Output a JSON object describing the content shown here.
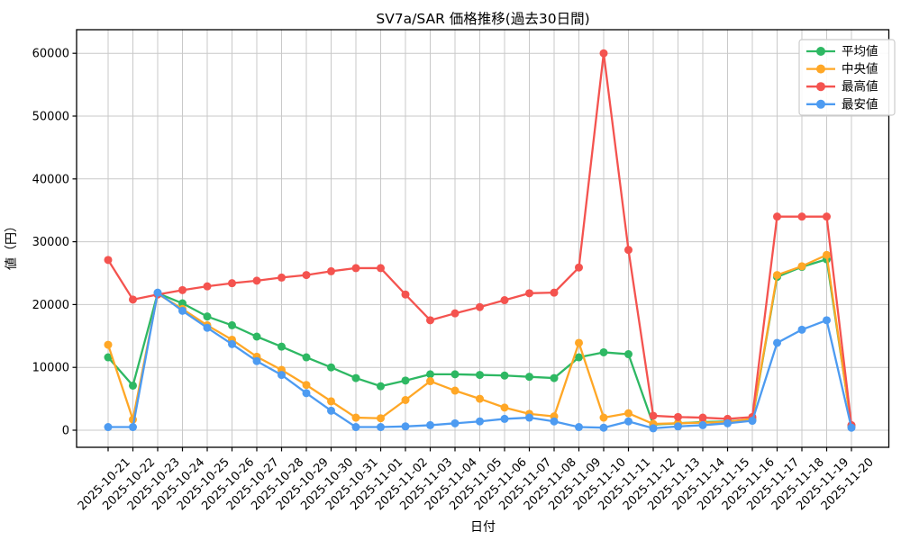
{
  "chart_data": {
    "type": "line",
    "title": "SV7a/SAR 価格推移(過去30日間)",
    "xlabel": "日付",
    "ylabel": "値（円）",
    "grid": true,
    "legend_position": "top-right",
    "y_ticks": [
      0,
      10000,
      20000,
      30000,
      40000,
      50000,
      60000
    ],
    "ylim": [
      -2700,
      63700
    ],
    "x": [
      "2025-10-21",
      "2025-10-22",
      "2025-10-23",
      "2025-10-24",
      "2025-10-25",
      "2025-10-26",
      "2025-10-27",
      "2025-10-28",
      "2025-10-29",
      "2025-10-30",
      "2025-10-31",
      "2025-11-01",
      "2025-11-02",
      "2025-11-03",
      "2025-11-04",
      "2025-11-05",
      "2025-11-06",
      "2025-11-07",
      "2025-11-08",
      "2025-11-09",
      "2025-11-10",
      "2025-11-11",
      "2025-11-12",
      "2025-11-13",
      "2025-11-14",
      "2025-11-15",
      "2025-11-16",
      "2025-11-17",
      "2025-11-18",
      "2025-11-19",
      "2025-11-20"
    ],
    "series": [
      {
        "name": "平均値",
        "key": "average",
        "color": "#2eb863",
        "values": [
          11600,
          7100,
          21800,
          20200,
          18100,
          16700,
          14900,
          13300,
          11600,
          10000,
          8300,
          7000,
          7900,
          8900,
          8900,
          8800,
          8700,
          8500,
          8300,
          11600,
          12400,
          12100,
          900,
          1100,
          1300,
          1400,
          1700,
          24400,
          26000,
          27200,
          700
        ]
      },
      {
        "name": "中央値",
        "key": "median",
        "color": "#ffa726",
        "values": [
          13600,
          1700,
          21700,
          19300,
          16700,
          14400,
          11700,
          9600,
          7200,
          4600,
          2000,
          1900,
          4800,
          7800,
          6300,
          5000,
          3600,
          2600,
          2200,
          13900,
          2000,
          2700,
          1000,
          1100,
          1200,
          1300,
          1800,
          24700,
          26100,
          27900,
          500
        ]
      },
      {
        "name": "最高値",
        "key": "max",
        "color": "#f4534f",
        "values": [
          27100,
          20800,
          21600,
          22300,
          22900,
          23400,
          23800,
          24300,
          24700,
          25300,
          25800,
          25800,
          21600,
          17500,
          18600,
          19600,
          20700,
          21800,
          21900,
          25900,
          60000,
          28700,
          2300,
          2100,
          2000,
          1800,
          2100,
          34000,
          34000,
          34000,
          800
        ]
      },
      {
        "name": "最安値",
        "key": "min",
        "color": "#4d9bf1",
        "values": [
          500,
          500,
          21900,
          19000,
          16300,
          13700,
          11000,
          8800,
          5900,
          3100,
          500,
          500,
          600,
          800,
          1100,
          1400,
          1800,
          2000,
          1400,
          500,
          400,
          1400,
          300,
          600,
          800,
          1100,
          1500,
          13900,
          16000,
          17500,
          400
        ]
      }
    ],
    "colors": {
      "background": "#ffffff",
      "grid": "#c9c9c9",
      "spine": "#000000",
      "text": "#000000",
      "legend_border": "#cccccc",
      "legend_background": "#ffffff"
    }
  }
}
